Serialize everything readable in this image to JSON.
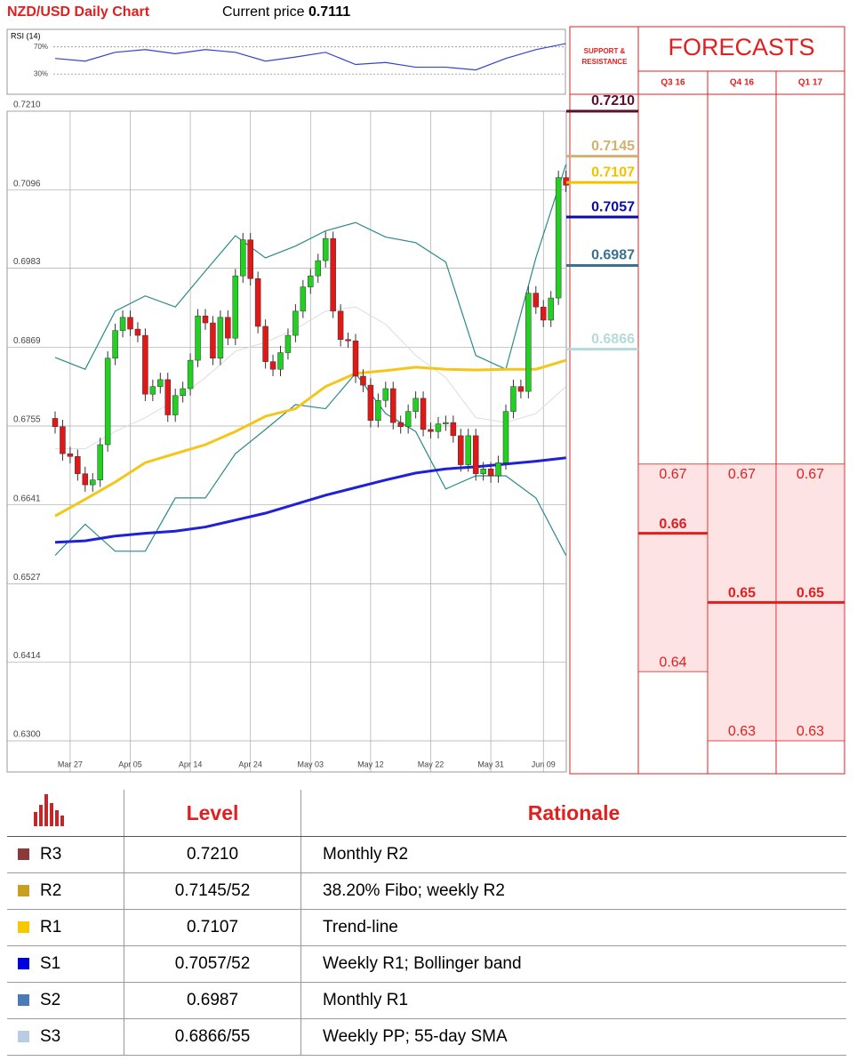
{
  "header": {
    "title": "NZD/USD Daily Chart",
    "price_label": "Current price",
    "price": "0.7111"
  },
  "chart_data": [
    {
      "type": "candlestick",
      "categories": [
        null,
        null,
        "Mar 27",
        null,
        null,
        null,
        null,
        null,
        null,
        null,
        "Apr 05",
        null,
        null,
        null,
        null,
        null,
        null,
        null,
        "Apr 14",
        null,
        null,
        null,
        null,
        null,
        null,
        null,
        "Apr 24",
        null,
        null,
        null,
        null,
        null,
        null,
        null,
        "May 03",
        null,
        null,
        null,
        null,
        null,
        null,
        null,
        "May 12",
        null,
        null,
        null,
        null,
        null,
        null,
        null,
        "May 22",
        null,
        null,
        null,
        null,
        null,
        null,
        null,
        "May 31",
        null,
        null,
        null,
        null,
        null,
        null,
        "Jun 09",
        null,
        null,
        null
      ],
      "open": [
        0.6766,
        0.6754,
        0.6715,
        0.6711,
        0.6686,
        0.667,
        0.6677,
        0.6728,
        0.6853,
        0.6893,
        0.6912,
        0.6895,
        0.6886,
        0.6801,
        0.6812,
        0.6822,
        0.6771,
        0.6799,
        0.6809,
        0.685,
        0.6914,
        0.6904,
        0.6853,
        0.6912,
        0.6882,
        0.6972,
        0.7024,
        0.6968,
        0.6899,
        0.6848,
        0.6837,
        0.6861,
        0.6886,
        0.6921,
        0.6956,
        0.6972,
        0.6994,
        0.7026,
        0.6921,
        0.688,
        0.6878,
        0.6827,
        0.6814,
        0.6763,
        0.6792,
        0.6809,
        0.676,
        0.6754,
        0.6776,
        0.6795,
        0.675,
        0.6747,
        0.6758,
        0.676,
        0.6741,
        0.6699,
        0.6741,
        0.6686,
        0.6693,
        0.6683,
        0.6702,
        0.6776,
        0.6812,
        0.6805,
        0.6947,
        0.6927,
        0.6908,
        0.694,
        0.7114
      ],
      "high": [
        0.6776,
        0.6764,
        0.6725,
        0.6721,
        0.6696,
        0.6687,
        0.6738,
        0.6863,
        0.6903,
        0.6922,
        0.6922,
        0.6905,
        0.6896,
        0.6822,
        0.6832,
        0.6832,
        0.6809,
        0.6819,
        0.686,
        0.6924,
        0.6924,
        0.6914,
        0.6922,
        0.6922,
        0.6982,
        0.7034,
        0.7034,
        0.6978,
        0.6909,
        0.6858,
        0.6871,
        0.6896,
        0.6931,
        0.6966,
        0.6982,
        0.7004,
        0.7036,
        0.7036,
        0.6931,
        0.689,
        0.6888,
        0.6837,
        0.6824,
        0.6802,
        0.6819,
        0.6819,
        0.677,
        0.6786,
        0.6805,
        0.6805,
        0.676,
        0.6768,
        0.677,
        0.677,
        0.6751,
        0.6751,
        0.6751,
        0.6703,
        0.6703,
        0.6712,
        0.6786,
        0.6822,
        0.6822,
        0.6957,
        0.6957,
        0.6937,
        0.695,
        0.7124,
        0.7124
      ],
      "low": [
        0.6744,
        0.6705,
        0.6701,
        0.6676,
        0.666,
        0.666,
        0.6667,
        0.6718,
        0.6843,
        0.6883,
        0.6885,
        0.6876,
        0.6791,
        0.6791,
        0.6802,
        0.6761,
        0.6761,
        0.6789,
        0.6799,
        0.684,
        0.6894,
        0.6843,
        0.6843,
        0.6872,
        0.6872,
        0.6962,
        0.6958,
        0.6889,
        0.6838,
        0.6827,
        0.6827,
        0.6851,
        0.6876,
        0.6911,
        0.6946,
        0.6962,
        0.6984,
        0.6911,
        0.687,
        0.6868,
        0.6817,
        0.6804,
        0.6753,
        0.6753,
        0.6782,
        0.675,
        0.6744,
        0.6744,
        0.6766,
        0.674,
        0.6737,
        0.6737,
        0.6748,
        0.6731,
        0.6689,
        0.6689,
        0.6676,
        0.6676,
        0.6673,
        0.6673,
        0.6692,
        0.6766,
        0.6795,
        0.6795,
        0.6917,
        0.6898,
        0.6898,
        0.693,
        0.7093
      ],
      "close": [
        0.6754,
        0.6715,
        0.6711,
        0.6686,
        0.667,
        0.6677,
        0.6728,
        0.6853,
        0.6893,
        0.6912,
        0.6895,
        0.6886,
        0.6801,
        0.6812,
        0.6822,
        0.6771,
        0.6799,
        0.6809,
        0.685,
        0.6914,
        0.6904,
        0.6853,
        0.6912,
        0.6882,
        0.6972,
        0.7024,
        0.6968,
        0.6899,
        0.6848,
        0.6837,
        0.6861,
        0.6886,
        0.6921,
        0.6956,
        0.6972,
        0.6994,
        0.7026,
        0.6921,
        0.688,
        0.6878,
        0.6827,
        0.6814,
        0.6763,
        0.6792,
        0.6809,
        0.676,
        0.6754,
        0.6776,
        0.6795,
        0.675,
        0.6747,
        0.6758,
        0.676,
        0.6741,
        0.6699,
        0.6741,
        0.6686,
        0.6693,
        0.6683,
        0.6702,
        0.6776,
        0.6812,
        0.6805,
        0.6947,
        0.6927,
        0.6908,
        0.694,
        0.7114,
        0.7103
      ],
      "up_color": "#22d022",
      "down_color": "#e01818",
      "ylim": [
        0.6255,
        0.721
      ],
      "yticks": [
        {
          "value": 0.721,
          "label": "0.7210"
        },
        0.7096,
        0.6983,
        0.6869,
        0.6755,
        0.6641,
        0.6527,
        0.6414,
        {
          "value": 0.63,
          "label": "0.6300"
        }
      ],
      "grid": true,
      "lines": {
        "x": [
          0,
          4,
          8,
          12,
          16,
          20,
          24,
          28,
          32,
          36,
          40,
          44,
          48,
          52,
          56,
          60,
          64,
          68
        ],
        "series": [
          {
            "color": "#dcdcdc",
            "width": 1,
            "values": [
              0.6722,
              0.6722,
              0.6747,
              0.6767,
              0.6792,
              0.6825,
              0.6863,
              0.6876,
              0.6895,
              0.6921,
              0.6927,
              0.6902,
              0.6857,
              0.6825,
              0.6767,
              0.676,
              0.6773,
              0.6812
            ]
          },
          {
            "color": "#2a8a8a",
            "width": 1.2,
            "values": [
              0.6854,
              0.6837,
              0.6921,
              0.6943,
              0.6927,
              0.6979,
              0.703,
              0.6998,
              0.7015,
              0.7037,
              0.7049,
              0.7028,
              0.702,
              0.6992,
              0.6857,
              0.6837,
              0.6998,
              0.7133
            ]
          },
          {
            "color": "#2a8a8a",
            "width": 1.2,
            "values": [
              0.6568,
              0.6613,
              0.6574,
              0.6574,
              0.6651,
              0.6651,
              0.6715,
              0.675,
              0.6786,
              0.678,
              0.6831,
              0.6773,
              0.6747,
              0.6664,
              0.6683,
              0.6683,
              0.6651,
              0.6568
            ]
          },
          {
            "color": "#f5c518",
            "width": 3,
            "values": [
              0.6625,
              0.6649,
              0.6674,
              0.6702,
              0.6715,
              0.6728,
              0.6747,
              0.6769,
              0.678,
              0.6812,
              0.6831,
              0.6835,
              0.684,
              0.6837,
              0.6836,
              0.6837,
              0.6837,
              0.685
            ]
          },
          {
            "color": "#2020d8",
            "width": 3,
            "values": [
              0.6587,
              0.6589,
              0.6596,
              0.66,
              0.6603,
              0.6609,
              0.6619,
              0.6629,
              0.6642,
              0.6655,
              0.6666,
              0.6677,
              0.6687,
              0.6693,
              0.6696,
              0.67,
              0.6704,
              0.6709
            ]
          }
        ]
      },
      "levels": {
        "title": "SUPPORT & RESISTANCE",
        "items": [
          {
            "value": 0.721,
            "label": "0.7210",
            "color": "#5a0f2e"
          },
          {
            "value": 0.7145,
            "color": "#d4b070"
          },
          {
            "value": 0.7107,
            "color": "#f2c200"
          },
          {
            "value": 0.7057,
            "color": "#0a0aa8"
          },
          {
            "value": 0.6987,
            "color": "#3a7090"
          },
          {
            "value": 0.6866,
            "color": "#b4dada"
          }
        ]
      },
      "forecasts": {
        "title": "FORECASTS",
        "color": "#e02020",
        "columns": [
          {
            "period": "Q3 16",
            "high": 0.67,
            "median": 0.66,
            "low": 0.64
          },
          {
            "period": "Q4 16",
            "high": 0.67,
            "median": 0.65,
            "low": 0.63
          },
          {
            "period": "Q1 17",
            "high": 0.67,
            "median": 0.65,
            "low": 0.63
          }
        ]
      }
    },
    {
      "type": "line",
      "title": "RSI (14)",
      "x": [
        0,
        4,
        8,
        12,
        16,
        20,
        24,
        28,
        32,
        36,
        40,
        44,
        48,
        52,
        56,
        60,
        64,
        68
      ],
      "values": [
        53,
        49,
        62,
        66,
        60,
        66,
        62,
        49,
        55,
        62,
        44,
        47,
        40,
        40,
        36,
        53,
        66,
        75
      ],
      "color": "#3344cc",
      "ylim": [
        0,
        92
      ],
      "yticks": [
        {
          "value": 70,
          "label": "70%"
        },
        {
          "value": 30,
          "label": "30%"
        }
      ]
    }
  ],
  "table": {
    "header": [
      "Level",
      "Rationale"
    ],
    "rows": [
      {
        "code": "R3",
        "color": "#8b3a3a",
        "level": "0.7210",
        "rationale": "Monthly R2"
      },
      {
        "code": "R2",
        "color": "#c8a020",
        "level": "0.7145/52",
        "rationale": "38.20% Fibo; weekly R2"
      },
      {
        "code": "R1",
        "color": "#f5c800",
        "level": "0.7107",
        "rationale": "Trend-line"
      },
      {
        "code": "S1",
        "color": "#0000dd",
        "level": "0.7057/52",
        "rationale": "Weekly R1; Bollinger band"
      },
      {
        "code": "S2",
        "color": "#4a7ab8",
        "level": "0.6987",
        "rationale": "Monthly R1"
      },
      {
        "code": "S3",
        "color": "#b8cce4",
        "level": "0.6866/55",
        "rationale": "Weekly PP; 55-day SMA"
      }
    ]
  }
}
